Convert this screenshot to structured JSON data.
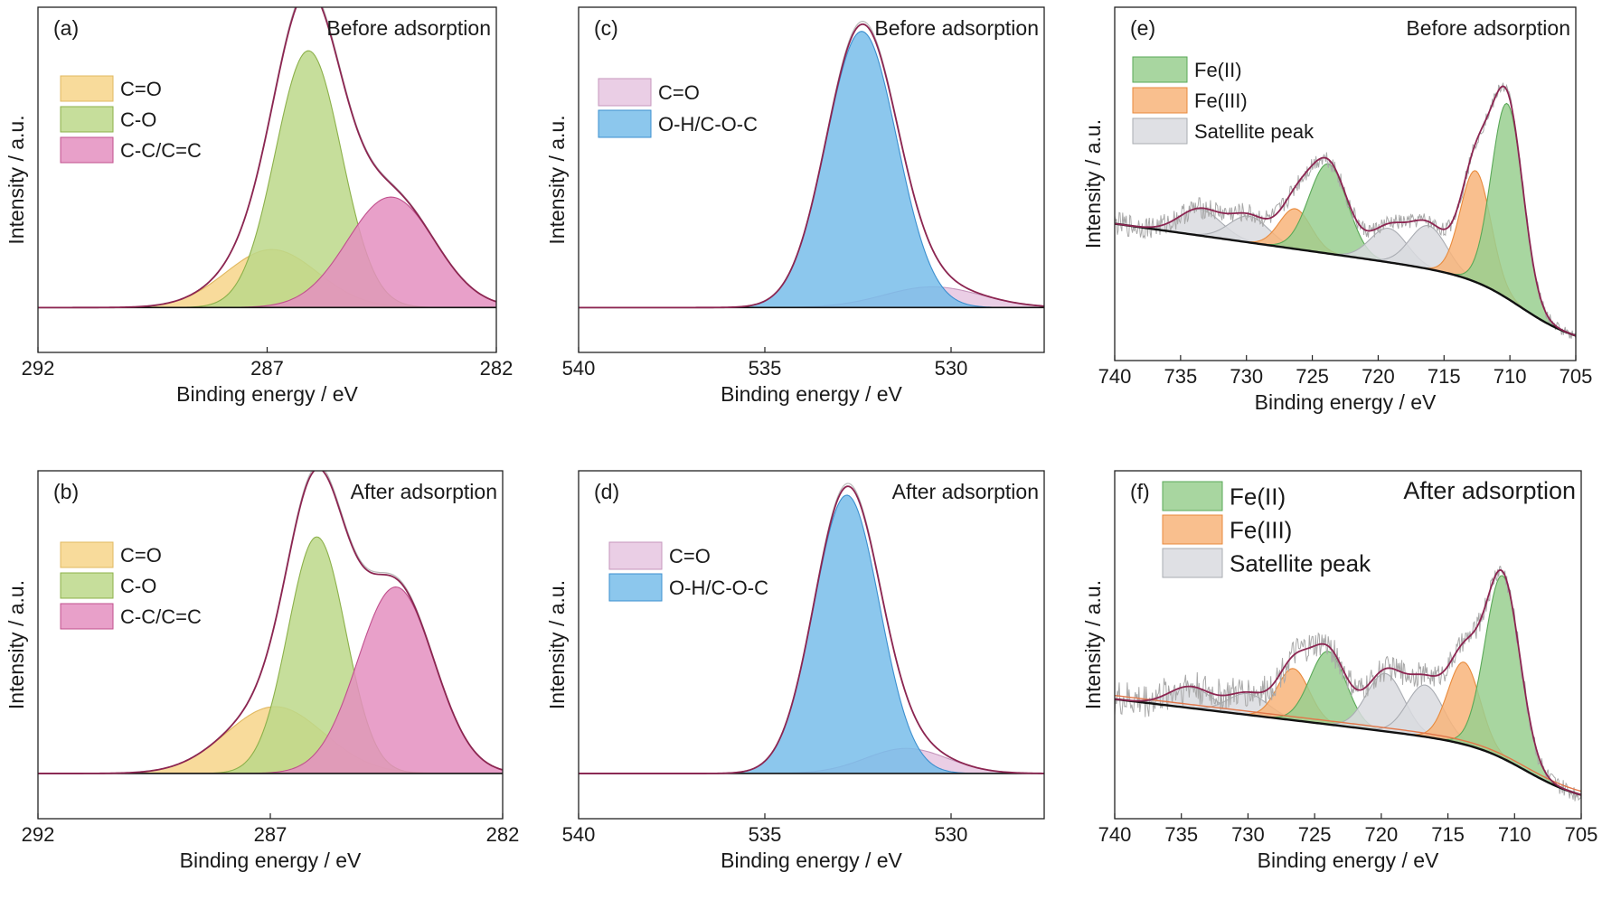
{
  "chart_data": [
    {
      "panel_label": "(a)",
      "condition": "Before adsorption",
      "type": "area",
      "xlabel": "Binding energy / eV",
      "ylabel": "Intensity / a.u.",
      "xlim": [
        292,
        282
      ],
      "ylim": [
        0,
        1.08
      ],
      "xticks": [
        292,
        287,
        282
      ],
      "baseline": {
        "x0": 292,
        "y0": 0.0,
        "x1": 282,
        "y1": 0.0
      },
      "envelope": true,
      "noisy": false,
      "legend": [
        "C=O",
        "C-O",
        "C-C/C=C"
      ],
      "series": [
        {
          "name": "C=O",
          "center": 286.9,
          "height": 0.21,
          "width": 1.0,
          "color": "#f7d58a",
          "line": "#e0b860"
        },
        {
          "name": "C-O",
          "center": 286.1,
          "height": 0.93,
          "width": 0.72,
          "color": "#bcd88a",
          "line": "#8cb04a"
        },
        {
          "name": "C-C/C=C",
          "center": 284.3,
          "height": 0.4,
          "width": 0.95,
          "color": "#e48fbf",
          "line": "#c0508d"
        }
      ]
    },
    {
      "panel_label": "(b)",
      "condition": "After adsorption",
      "type": "area",
      "xlabel": "Binding energy / eV",
      "ylabel": "Intensity / a.u.",
      "xlim": [
        292,
        282
      ],
      "ylim": [
        0,
        1.08
      ],
      "xticks": [
        292,
        287,
        282
      ],
      "baseline": {
        "x0": 292,
        "y0": 0.0,
        "x1": 282,
        "y1": 0.0
      },
      "envelope": true,
      "noisy": false,
      "legend": [
        "C=O",
        "C-O",
        "C-C/C=C"
      ],
      "series": [
        {
          "name": "C=O",
          "center": 286.9,
          "height": 0.24,
          "width": 1.05,
          "color": "#f7d58a",
          "line": "#e0b860"
        },
        {
          "name": "C-O",
          "center": 286.0,
          "height": 0.85,
          "width": 0.62,
          "color": "#bcd88a",
          "line": "#8cb04a"
        },
        {
          "name": "C-C/C=C",
          "center": 284.3,
          "height": 0.67,
          "width": 0.82,
          "color": "#e48fbf",
          "line": "#c0508d"
        }
      ]
    },
    {
      "panel_label": "(c)",
      "condition": "Before adsorption",
      "type": "area",
      "xlabel": "Binding energy / eV",
      "ylabel": "Intensity / a.u.",
      "xlim": [
        540,
        527.5
      ],
      "ylim": [
        0,
        1.08
      ],
      "xticks": [
        540,
        535,
        530
      ],
      "baseline": {
        "x0": 540,
        "y0": 0.0,
        "x1": 527.5,
        "y1": 0.0
      },
      "envelope": true,
      "noisy": false,
      "legend": [
        "C=O",
        "O-H/C-O-C"
      ],
      "series": [
        {
          "name": "C=O",
          "center": 530.5,
          "height": 0.075,
          "width": 1.3,
          "color": "#e6c6e0",
          "line": "#c596bc"
        },
        {
          "name": "O-H/C-O-C",
          "center": 532.4,
          "height": 1.0,
          "width": 0.95,
          "color": "#78bdea",
          "line": "#3b8fcf"
        }
      ]
    },
    {
      "panel_label": "(d)",
      "condition": "After adsorption",
      "type": "area",
      "xlabel": "Binding energy / eV",
      "ylabel": "Intensity / a.u.",
      "xlim": [
        540,
        527.5
      ],
      "ylim": [
        0,
        1.08
      ],
      "xticks": [
        540,
        535,
        530
      ],
      "baseline": {
        "x0": 540,
        "y0": 0.0,
        "x1": 527.5,
        "y1": 0.0
      },
      "envelope": true,
      "noisy": false,
      "legend": [
        "C=O",
        "O-H/C-O-C"
      ],
      "series": [
        {
          "name": "C=O",
          "center": 531.2,
          "height": 0.09,
          "width": 1.1,
          "color": "#e6c6e0",
          "line": "#c596bc"
        },
        {
          "name": "O-H/C-O-C",
          "center": 532.8,
          "height": 1.0,
          "width": 0.88,
          "color": "#78bdea",
          "line": "#3b8fcf"
        }
      ]
    },
    {
      "panel_label": "(e)",
      "condition": "Before adsorption",
      "type": "area",
      "xlabel": "Binding energy / eV",
      "ylabel": "Intensity / a.u.",
      "xlim": [
        740,
        705
      ],
      "ylim": [
        -0.02,
        1.06
      ],
      "xticks": [
        740,
        735,
        730,
        725,
        720,
        715,
        710,
        705
      ],
      "baseline": {
        "x0": 740,
        "y0": 0.38,
        "x1": 705,
        "y1": 0.0
      },
      "envelope": true,
      "noisy": true,
      "legend": [
        "Fe(II)",
        "Fe(III)",
        "Satellite peak"
      ],
      "series": [
        {
          "name": "Satellite peak",
          "center": 733.5,
          "height": 0.085,
          "width": 1.6,
          "color": "#d9dbdf",
          "line": "#a9acb2"
        },
        {
          "name": "Satellite peak",
          "center": 729.8,
          "height": 0.085,
          "width": 1.5,
          "color": "#d9dbdf",
          "line": "#a9acb2"
        },
        {
          "name": "Fe(III)",
          "center": 726.3,
          "height": 0.13,
          "width": 1.2,
          "color": "#f8b47a",
          "line": "#e88a3c"
        },
        {
          "name": "Fe(II)",
          "center": 723.8,
          "height": 0.29,
          "width": 1.45,
          "color": "#99cf8f",
          "line": "#5aa857"
        },
        {
          "name": "Satellite peak",
          "center": 719.2,
          "height": 0.11,
          "width": 1.4,
          "color": "#d9dbdf",
          "line": "#a9acb2"
        },
        {
          "name": "Satellite peak",
          "center": 716.2,
          "height": 0.14,
          "width": 1.4,
          "color": "#d9dbdf",
          "line": "#a9acb2"
        },
        {
          "name": "Fe(III)",
          "center": 712.6,
          "height": 0.36,
          "width": 1.15,
          "color": "#f8b47a",
          "line": "#e88a3c"
        },
        {
          "name": "Fe(II)",
          "center": 710.2,
          "height": 0.63,
          "width": 1.2,
          "color": "#99cf8f",
          "line": "#5aa857"
        }
      ]
    },
    {
      "panel_label": "(f)",
      "condition": "After adsorption",
      "type": "area",
      "xlabel": "Binding energy / eV",
      "ylabel": "Intensity / a.u.",
      "xlim": [
        740,
        705
      ],
      "ylim": [
        -0.02,
        1.06
      ],
      "xticks": [
        740,
        735,
        730,
        725,
        720,
        715,
        710,
        705
      ],
      "baseline": {
        "x0": 740,
        "y0": 0.33,
        "x1": 705,
        "y1": 0.0
      },
      "envelope": true,
      "noisy": true,
      "legend": [
        "Fe(II)",
        "Fe(III)",
        "Satellite peak"
      ],
      "series": [
        {
          "name": "Satellite peak",
          "center": 734.3,
          "height": 0.07,
          "width": 1.6,
          "color": "#d9dbdf",
          "line": "#a9acb2"
        },
        {
          "name": "Satellite peak",
          "center": 730.0,
          "height": 0.07,
          "width": 1.5,
          "color": "#d9dbdf",
          "line": "#a9acb2"
        },
        {
          "name": "Fe(III)",
          "center": 726.6,
          "height": 0.17,
          "width": 1.2,
          "color": "#f8b47a",
          "line": "#e88a3c"
        },
        {
          "name": "Fe(II)",
          "center": 724.0,
          "height": 0.24,
          "width": 1.35,
          "color": "#99cf8f",
          "line": "#5aa857"
        },
        {
          "name": "Satellite peak",
          "center": 719.7,
          "height": 0.19,
          "width": 1.4,
          "color": "#d9dbdf",
          "line": "#a9acb2"
        },
        {
          "name": "Satellite peak",
          "center": 716.7,
          "height": 0.17,
          "width": 1.35,
          "color": "#d9dbdf",
          "line": "#a9acb2"
        },
        {
          "name": "Fe(III)",
          "center": 713.8,
          "height": 0.27,
          "width": 1.2,
          "color": "#f8b47a",
          "line": "#e88a3c"
        },
        {
          "name": "Fe(II)",
          "center": 710.9,
          "height": 0.6,
          "width": 1.3,
          "color": "#99cf8f",
          "line": "#5aa857"
        }
      ]
    }
  ]
}
